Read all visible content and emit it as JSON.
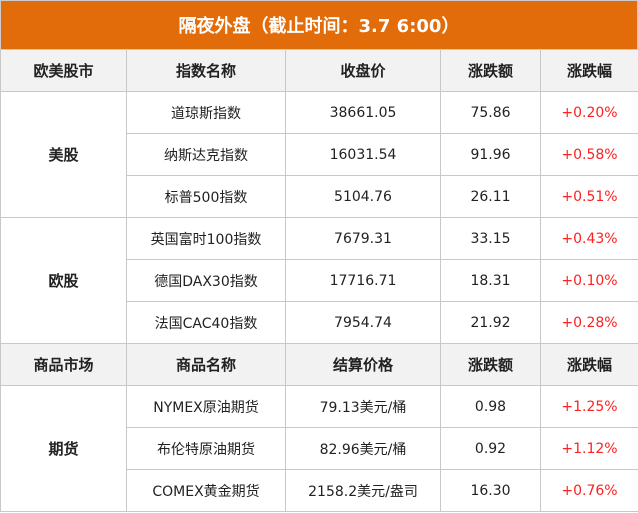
{
  "title": "隔夜外盘（截止时间：3.7 6:00）",
  "colors": {
    "title_bg": "#E36C0A",
    "up": "#FF2020",
    "header_bg": "#F2F2F2"
  },
  "stocks": {
    "headers": [
      "欧美股市",
      "指数名称",
      "收盘价",
      "涨跌额",
      "涨跌幅"
    ],
    "groups": [
      {
        "name": "美股",
        "rows": [
          [
            "道琼斯指数",
            "38661.05",
            "75.86",
            "+0.20%"
          ],
          [
            "纳斯达克指数",
            "16031.54",
            "91.96",
            "+0.58%"
          ],
          [
            "标普500指数",
            "5104.76",
            "26.11",
            "+0.51%"
          ]
        ]
      },
      {
        "name": "欧股",
        "rows": [
          [
            "英国富时100指数",
            "7679.31",
            "33.15",
            "+0.43%"
          ],
          [
            "德国DAX30指数",
            "17716.71",
            "18.31",
            "+0.10%"
          ],
          [
            "法国CAC40指数",
            "7954.74",
            "21.92",
            "+0.28%"
          ]
        ]
      }
    ]
  },
  "commodities": {
    "headers": [
      "商品市场",
      "商品名称",
      "结算价格",
      "涨跌额",
      "涨跌幅"
    ],
    "groups": [
      {
        "name": "期货",
        "rows": [
          [
            "NYMEX原油期货",
            "79.13美元/桶",
            "0.98",
            "+1.25%"
          ],
          [
            "布伦特原油期货",
            "82.96美元/桶",
            "0.92",
            "+1.12%"
          ],
          [
            "COMEX黄金期货",
            "2158.2美元/盎司",
            "16.30",
            "+0.76%"
          ]
        ]
      }
    ]
  }
}
